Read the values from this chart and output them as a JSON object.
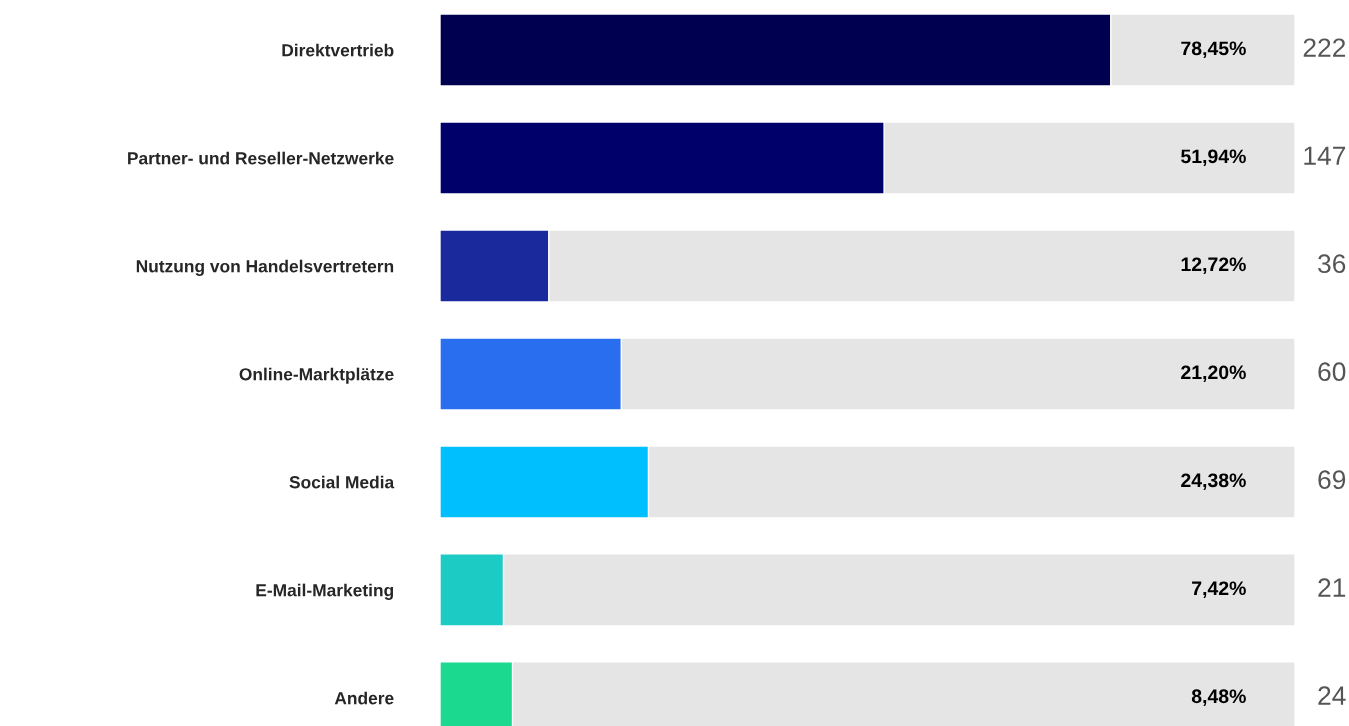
{
  "chart_data": {
    "type": "bar",
    "orientation": "horizontal",
    "xlim": [
      0,
      100
    ],
    "tick_labels": "y",
    "categories": [
      "Direktvertrieb",
      "Partner- und Reseller-Netzwerke",
      "Nutzung von Handelsvertretern",
      "Online-Marktplätze",
      "Social Media",
      "E-Mail-Marketing",
      "Andere"
    ],
    "series": [
      {
        "colors": [
          "#000050",
          "#00006a",
          "#1a2a9c",
          "#2a6ef0",
          "#00bfff",
          "#1ccbc4",
          "#1bd98f"
        ],
        "values": [
          78.45,
          51.94,
          12.72,
          21.2,
          24.38,
          7.42,
          8.48
        ],
        "value_labels": [
          "78,45%",
          "51,94%",
          "12,72%",
          "21,20%",
          "24,38%",
          "7,42%",
          "8,48%"
        ]
      }
    ],
    "annotations": [
      "222",
      "147",
      "36",
      "60",
      "69",
      "21",
      "24"
    ]
  }
}
